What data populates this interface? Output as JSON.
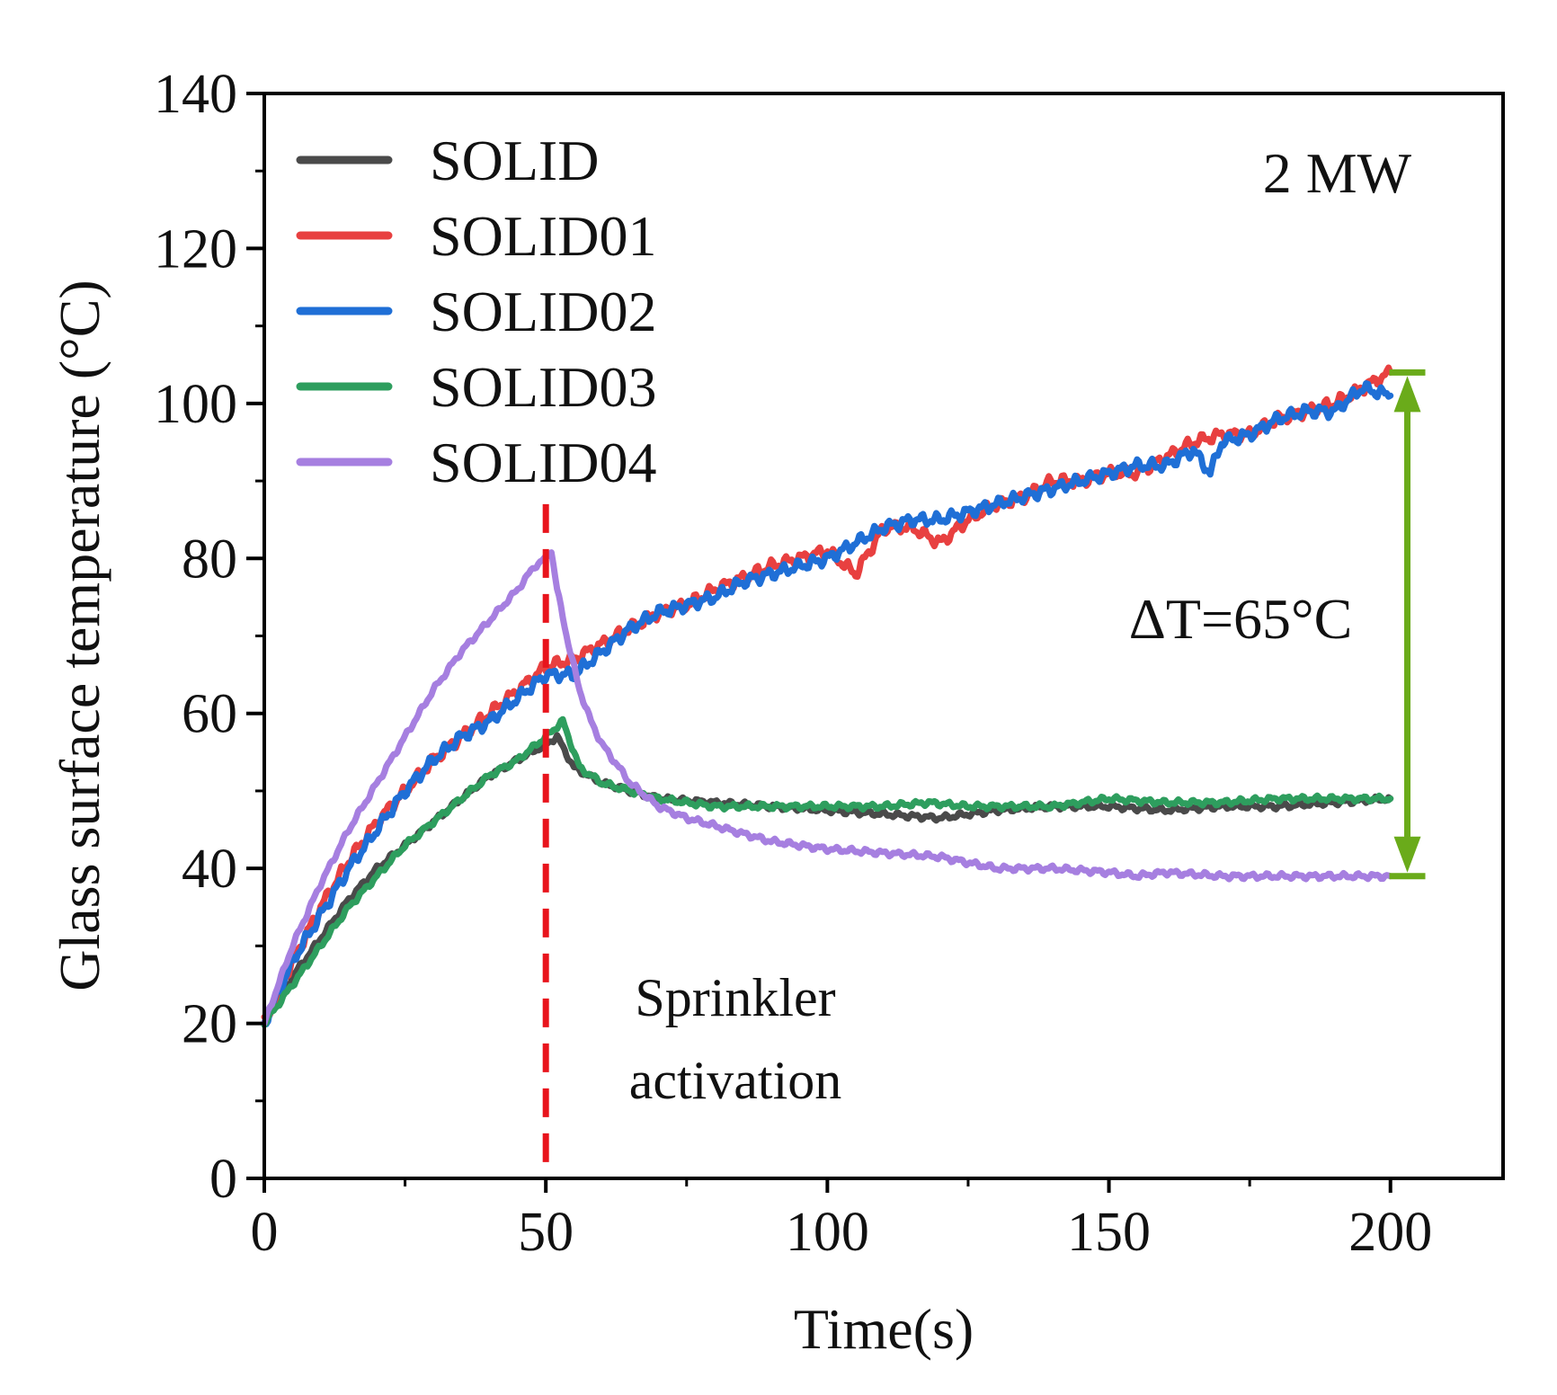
{
  "chart_data": {
    "type": "line",
    "xlabel": "Time(s)",
    "ylabel": "Glass surface temperature (°C)",
    "xlim": [
      0,
      220
    ],
    "ylim": [
      0,
      140
    ],
    "x_ticks": [
      0,
      50,
      100,
      150,
      200
    ],
    "y_ticks": [
      0,
      20,
      40,
      60,
      80,
      100,
      120,
      140
    ],
    "x_tick_labels": [
      "0",
      "50",
      "100",
      "150",
      "200"
    ],
    "y_tick_labels": [
      "0",
      "20",
      "40",
      "60",
      "80",
      "100",
      "120",
      "140"
    ],
    "grid": false,
    "legend_position": "top-left",
    "label_2mw": "2 MW",
    "sprinkler": {
      "x": 50,
      "line1": "Sprinkler",
      "line2": "activation",
      "color": "#e8141c"
    },
    "delta_t": {
      "text": "ΔT=65°C",
      "x": 203,
      "y_top": 104,
      "y_bottom": 39,
      "color": "#6aab1a",
      "text_color": "#5b8a1e"
    },
    "series": [
      {
        "name": "SOLID",
        "color": "#4a4a4a",
        "x": [
          0,
          5,
          10,
          15,
          20,
          25,
          30,
          35,
          40,
          45,
          50,
          52,
          55,
          60,
          65,
          70,
          80,
          90,
          100,
          110,
          120,
          130,
          140,
          150,
          160,
          170,
          180,
          190,
          200
        ],
        "y": [
          20,
          26,
          31,
          36,
          40,
          43,
          46,
          49,
          52,
          54,
          56,
          57,
          53,
          51,
          50,
          49,
          48.5,
          48,
          47.5,
          47,
          46.5,
          47.5,
          48,
          48,
          47.5,
          48,
          48,
          48.5,
          49
        ]
      },
      {
        "name": "SOLID01",
        "color": "#e84040",
        "x": [
          0,
          5,
          10,
          15,
          20,
          25,
          30,
          35,
          40,
          45,
          50,
          55,
          60,
          65,
          70,
          75,
          80,
          85,
          90,
          95,
          100,
          105,
          110,
          115,
          120,
          125,
          130,
          135,
          140,
          145,
          150,
          155,
          160,
          165,
          170,
          175,
          180,
          185,
          190,
          195,
          200
        ],
        "y": [
          20,
          28,
          35,
          41,
          46,
          50,
          54,
          57,
          60,
          63,
          66,
          67,
          69,
          71,
          73,
          74,
          76,
          77.5,
          79,
          80,
          81,
          78,
          84,
          84,
          82,
          85,
          87,
          88,
          90,
          90,
          91,
          91,
          93,
          95,
          96,
          96,
          98,
          99,
          100,
          102,
          104
        ]
      },
      {
        "name": "SOLID02",
        "color": "#1f6fd6",
        "x": [
          0,
          5,
          10,
          15,
          20,
          25,
          30,
          35,
          40,
          45,
          50,
          55,
          60,
          65,
          70,
          75,
          80,
          85,
          90,
          95,
          100,
          105,
          110,
          115,
          120,
          125,
          130,
          135,
          140,
          145,
          150,
          155,
          160,
          165,
          168,
          170,
          175,
          180,
          185,
          190,
          195,
          200
        ],
        "y": [
          20,
          28,
          34,
          40,
          45,
          50,
          54,
          57,
          59,
          62,
          65,
          65,
          68,
          71,
          73,
          74,
          75,
          77,
          78,
          79,
          80,
          82,
          84,
          85,
          85,
          86,
          87,
          88,
          89,
          90,
          91,
          92,
          92,
          94,
          91,
          95,
          96,
          98,
          99,
          99,
          102,
          101
        ]
      },
      {
        "name": "SOLID03",
        "color": "#2e9e5e",
        "x": [
          0,
          5,
          10,
          15,
          20,
          25,
          30,
          35,
          40,
          45,
          50,
          53,
          56,
          60,
          65,
          70,
          80,
          90,
          100,
          110,
          118,
          125,
          130,
          140,
          150,
          160,
          170,
          180,
          190,
          200
        ],
        "y": [
          20,
          25,
          30,
          35,
          39,
          43,
          46,
          49,
          52,
          54,
          57,
          59,
          53,
          51,
          50,
          49,
          48,
          48,
          48,
          48,
          48.5,
          48,
          48,
          48,
          49,
          48.5,
          48.5,
          49,
          49,
          49
        ]
      },
      {
        "name": "SOLID04",
        "color": "#a67fe0",
        "x": [
          0,
          5,
          10,
          15,
          20,
          25,
          30,
          35,
          40,
          45,
          48,
          50,
          51,
          52,
          54,
          56,
          58,
          60,
          65,
          70,
          75,
          80,
          85,
          90,
          95,
          100,
          110,
          120,
          130,
          140,
          150,
          155,
          160,
          170,
          180,
          190,
          200
        ],
        "y": [
          20,
          30,
          38,
          45,
          51,
          57,
          63,
          68,
          72,
          76,
          79,
          80,
          81,
          76,
          69,
          63,
          59,
          56,
          51,
          48,
          46.5,
          45.5,
          44.5,
          43.5,
          43,
          42.5,
          42,
          41.5,
          40,
          40,
          39.5,
          39,
          39.5,
          39,
          39,
          39,
          39
        ]
      }
    ]
  }
}
